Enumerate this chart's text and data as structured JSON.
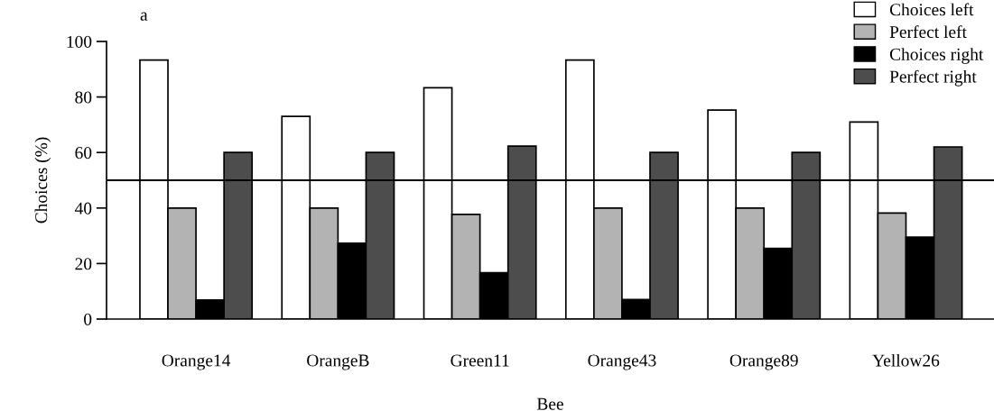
{
  "chart_data": {
    "type": "bar",
    "annotations": [
      "a"
    ],
    "xlabel": "Bee",
    "ylabel": "Choices (%)",
    "categories": [
      "Orange14",
      "OrangeB",
      "Green11",
      "Orange43",
      "Orange89",
      "Yellow26"
    ],
    "series": [
      {
        "name": "Choices left",
        "color": "#ffffff",
        "values": [
          93.3,
          73,
          83.3,
          93.3,
          75.3,
          71
        ]
      },
      {
        "name": "Perfect left",
        "color": "#b3b3b3",
        "values": [
          40,
          40,
          37.7,
          40,
          40,
          38.2
        ]
      },
      {
        "name": "Choices right",
        "color": "#000000",
        "values": [
          6.9,
          27.3,
          16.7,
          7,
          25.5,
          29.5
        ]
      },
      {
        "name": "Perfect right",
        "color": "#4d4d4d",
        "values": [
          60,
          60,
          62.3,
          60,
          60,
          62
        ]
      }
    ],
    "ylim": [
      0,
      100
    ],
    "yticks": [
      0,
      20,
      40,
      60,
      80,
      100
    ],
    "ref_lines": [
      {
        "axis": "y",
        "value": 50,
        "color": "#000000"
      }
    ],
    "grid": false,
    "legend": "top right"
  }
}
